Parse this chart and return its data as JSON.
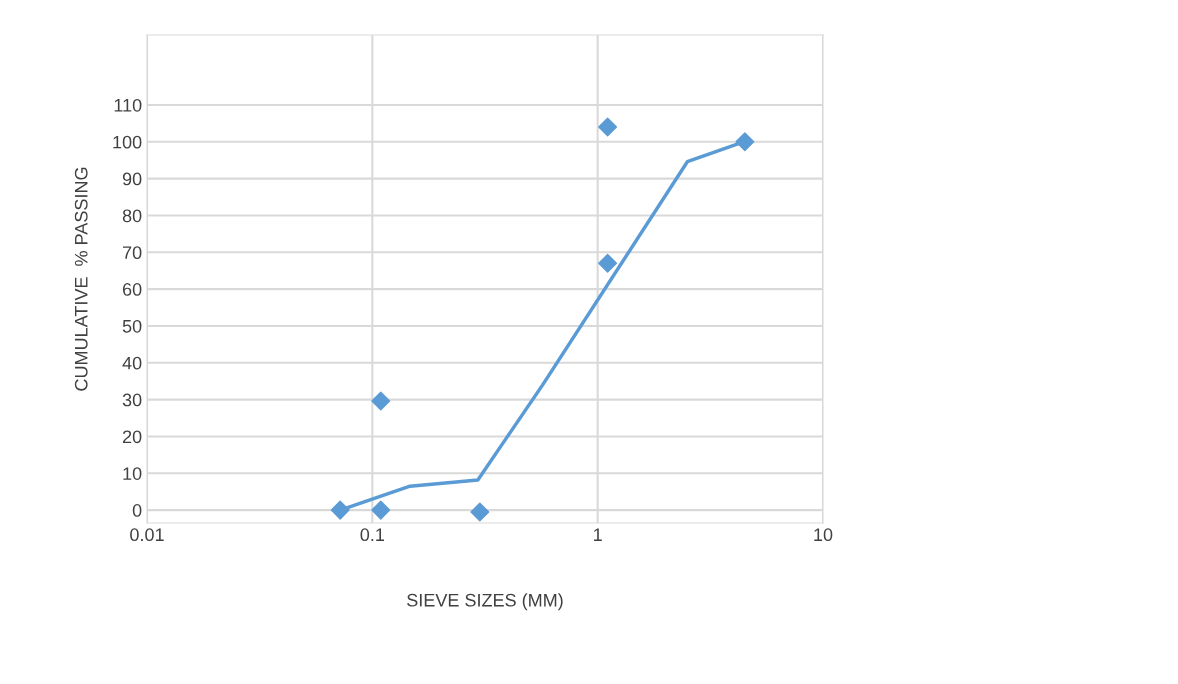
{
  "chart_data": {
    "type": "scatter",
    "xlabel": "SIEVE SIZES (MM)",
    "ylabel": "CUMULATIVE  % PASSING",
    "log": "x",
    "xlim": [
      0.01,
      10
    ],
    "xticks": [
      0.01,
      0.1,
      1,
      10
    ],
    "ylim": [
      -3.5,
      129
    ],
    "yticks": [
      0,
      10,
      20,
      30,
      40,
      50,
      60,
      70,
      80,
      90,
      100,
      110
    ],
    "grid": true,
    "series": [
      {
        "type": "line",
        "color": "#5b9bd5",
        "marker": "none",
        "x": [
          0.072,
          0.147,
          0.294,
          0.57,
          2.5,
          4.6
        ],
        "values": [
          0,
          6.5,
          8.2,
          34,
          94.6,
          100.3
        ]
      },
      {
        "color": "#5b9bd5",
        "marker": "diamond",
        "x": [
          0.072,
          0.109,
          0.109,
          0.3,
          1.107,
          1.107,
          4.5
        ],
        "values": [
          0,
          0,
          29.6,
          -0.5,
          104,
          67,
          100
        ]
      }
    ]
  }
}
